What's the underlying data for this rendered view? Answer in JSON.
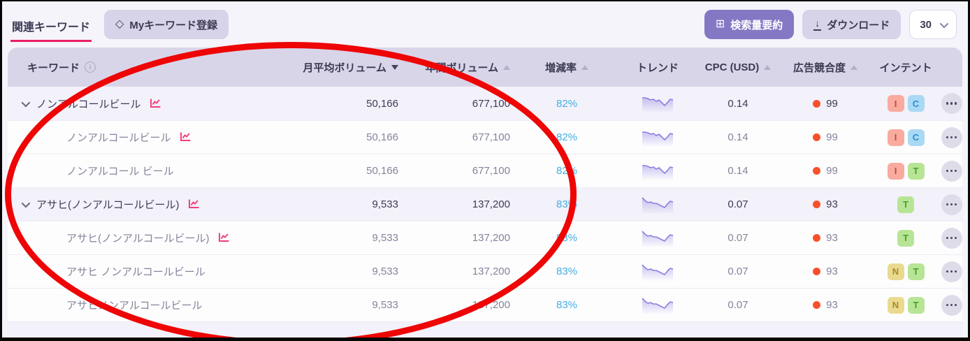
{
  "toolbar": {
    "active_tab": "関連キーワード",
    "my_keyword_button": "Myキーワード登録",
    "summary_button": "検索量要約",
    "download_button": "ダウンロード",
    "rows_per_page": "30"
  },
  "icons": {
    "diamond": "◇",
    "grid": "⊞",
    "download_arrow": "↓",
    "info": "i"
  },
  "table": {
    "columns": [
      {
        "label": "キーワード",
        "align": "left",
        "sort": "none",
        "info": true
      },
      {
        "label": "月平均ボリューム",
        "align": "right",
        "sort": "desc"
      },
      {
        "label": "年間ボリューム",
        "align": "right",
        "sort": "asc"
      },
      {
        "label": "増減率",
        "align": "center",
        "sort": "asc"
      },
      {
        "label": "トレンド",
        "align": "center",
        "sort": "none"
      },
      {
        "label": "CPC (USD)",
        "align": "center",
        "sort": "asc"
      },
      {
        "label": "広告競合度",
        "align": "center",
        "sort": "asc"
      },
      {
        "label": "インテント",
        "align": "center",
        "sort": "none"
      }
    ],
    "rows": [
      {
        "keyword": "ノンアルコールビール",
        "level": "parent",
        "expanded": true,
        "chart_icon": true,
        "monthly_avg_volume": "50,166",
        "annual_volume": "677,100",
        "change_rate": "82%",
        "cpc_usd": "0.14",
        "ad_competition": "99",
        "intents": [
          "I",
          "C"
        ],
        "trend": [
          6,
          6,
          7,
          9,
          8,
          11,
          9,
          13,
          17,
          13,
          8,
          9
        ]
      },
      {
        "keyword": "ノンアルコールビール",
        "level": "child",
        "chart_icon": true,
        "monthly_avg_volume": "50,166",
        "annual_volume": "677,100",
        "change_rate": "82%",
        "cpc_usd": "0.14",
        "ad_competition": "99",
        "intents": [
          "I",
          "C"
        ],
        "trend": [
          6,
          6,
          7,
          9,
          8,
          11,
          9,
          13,
          17,
          13,
          8,
          9
        ]
      },
      {
        "keyword": "ノンアルコール ビール",
        "level": "child",
        "chart_icon": false,
        "monthly_avg_volume": "50,166",
        "annual_volume": "677,100",
        "change_rate": "82%",
        "cpc_usd": "0.14",
        "ad_competition": "99",
        "intents": [
          "I",
          "T"
        ],
        "trend": [
          6,
          6,
          7,
          9,
          8,
          11,
          9,
          13,
          17,
          13,
          8,
          9
        ]
      },
      {
        "keyword": "アサヒ(ノンアルコールビール)",
        "level": "parent",
        "expanded": true,
        "chart_icon": true,
        "monthly_avg_volume": "9,533",
        "annual_volume": "137,200",
        "change_rate": "83%",
        "cpc_usd": "0.07",
        "ad_competition": "93",
        "intents": [
          "T"
        ],
        "trend": [
          4,
          8,
          11,
          10,
          12,
          12,
          14,
          16,
          18,
          13,
          9,
          10
        ]
      },
      {
        "keyword": "アサヒ(ノンアルコールビール)",
        "level": "child",
        "chart_icon": true,
        "monthly_avg_volume": "9,533",
        "annual_volume": "137,200",
        "change_rate": "83%",
        "cpc_usd": "0.07",
        "ad_competition": "93",
        "intents": [
          "T"
        ],
        "trend": [
          4,
          8,
          11,
          10,
          12,
          12,
          14,
          16,
          18,
          13,
          9,
          10
        ]
      },
      {
        "keyword": "アサヒ ノンアルコールビール",
        "level": "child",
        "chart_icon": false,
        "monthly_avg_volume": "9,533",
        "annual_volume": "137,200",
        "change_rate": "83%",
        "cpc_usd": "0.07",
        "ad_competition": "93",
        "intents": [
          "N",
          "T"
        ],
        "trend": [
          4,
          8,
          11,
          10,
          12,
          12,
          14,
          16,
          18,
          13,
          9,
          10
        ]
      },
      {
        "keyword": "アサヒノンアルコールビール",
        "level": "child",
        "chart_icon": false,
        "monthly_avg_volume": "9,533",
        "annual_volume": "137,200",
        "change_rate": "83%",
        "cpc_usd": "0.07",
        "ad_competition": "93",
        "intents": [
          "N",
          "T"
        ],
        "trend": [
          4,
          8,
          11,
          10,
          12,
          12,
          14,
          16,
          18,
          13,
          9,
          10
        ]
      }
    ],
    "intent_styles": {
      "I": {
        "bg": "#f9ab9f",
        "fg": "#c9463a"
      },
      "C": {
        "bg": "#aad9f4",
        "fg": "#2b8ed2"
      },
      "T": {
        "bg": "#b7e595",
        "fg": "#46a02c"
      },
      "N": {
        "bg": "#eada90",
        "fg": "#a98b21"
      }
    },
    "colors": {
      "percent_blue": "#46aee3",
      "competition_dot": "#f9502a",
      "sparkline": "#8b80e0",
      "keyword_chart_icon": "#f43f7f",
      "annotation_red": "#ee0505",
      "accent_pink": "#e91e63",
      "primary_purple": "#8478c4"
    }
  }
}
